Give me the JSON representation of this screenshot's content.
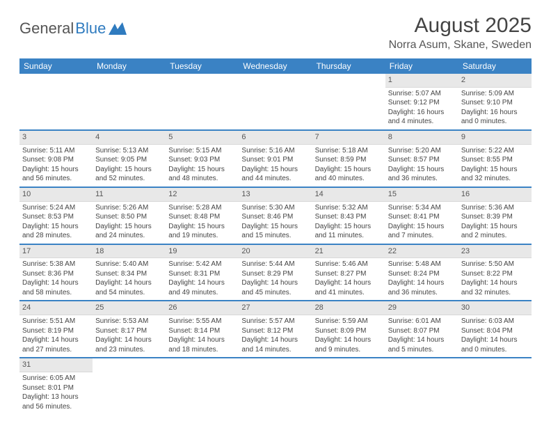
{
  "logo": {
    "text1": "General",
    "text2": "Blue"
  },
  "title": "August 2025",
  "location": "Norra Asum, Skane, Sweden",
  "colors": {
    "header_bg": "#3a82c4",
    "header_text": "#ffffff",
    "daynum_bg": "#e8e8e8",
    "border": "#3a82c4",
    "text": "#444444"
  },
  "weekdays": [
    "Sunday",
    "Monday",
    "Tuesday",
    "Wednesday",
    "Thursday",
    "Friday",
    "Saturday"
  ],
  "weeks": [
    [
      null,
      null,
      null,
      null,
      null,
      {
        "n": "1",
        "sr": "Sunrise: 5:07 AM",
        "ss": "Sunset: 9:12 PM",
        "d1": "Daylight: 16 hours",
        "d2": "and 4 minutes."
      },
      {
        "n": "2",
        "sr": "Sunrise: 5:09 AM",
        "ss": "Sunset: 9:10 PM",
        "d1": "Daylight: 16 hours",
        "d2": "and 0 minutes."
      }
    ],
    [
      {
        "n": "3",
        "sr": "Sunrise: 5:11 AM",
        "ss": "Sunset: 9:08 PM",
        "d1": "Daylight: 15 hours",
        "d2": "and 56 minutes."
      },
      {
        "n": "4",
        "sr": "Sunrise: 5:13 AM",
        "ss": "Sunset: 9:05 PM",
        "d1": "Daylight: 15 hours",
        "d2": "and 52 minutes."
      },
      {
        "n": "5",
        "sr": "Sunrise: 5:15 AM",
        "ss": "Sunset: 9:03 PM",
        "d1": "Daylight: 15 hours",
        "d2": "and 48 minutes."
      },
      {
        "n": "6",
        "sr": "Sunrise: 5:16 AM",
        "ss": "Sunset: 9:01 PM",
        "d1": "Daylight: 15 hours",
        "d2": "and 44 minutes."
      },
      {
        "n": "7",
        "sr": "Sunrise: 5:18 AM",
        "ss": "Sunset: 8:59 PM",
        "d1": "Daylight: 15 hours",
        "d2": "and 40 minutes."
      },
      {
        "n": "8",
        "sr": "Sunrise: 5:20 AM",
        "ss": "Sunset: 8:57 PM",
        "d1": "Daylight: 15 hours",
        "d2": "and 36 minutes."
      },
      {
        "n": "9",
        "sr": "Sunrise: 5:22 AM",
        "ss": "Sunset: 8:55 PM",
        "d1": "Daylight: 15 hours",
        "d2": "and 32 minutes."
      }
    ],
    [
      {
        "n": "10",
        "sr": "Sunrise: 5:24 AM",
        "ss": "Sunset: 8:53 PM",
        "d1": "Daylight: 15 hours",
        "d2": "and 28 minutes."
      },
      {
        "n": "11",
        "sr": "Sunrise: 5:26 AM",
        "ss": "Sunset: 8:50 PM",
        "d1": "Daylight: 15 hours",
        "d2": "and 24 minutes."
      },
      {
        "n": "12",
        "sr": "Sunrise: 5:28 AM",
        "ss": "Sunset: 8:48 PM",
        "d1": "Daylight: 15 hours",
        "d2": "and 19 minutes."
      },
      {
        "n": "13",
        "sr": "Sunrise: 5:30 AM",
        "ss": "Sunset: 8:46 PM",
        "d1": "Daylight: 15 hours",
        "d2": "and 15 minutes."
      },
      {
        "n": "14",
        "sr": "Sunrise: 5:32 AM",
        "ss": "Sunset: 8:43 PM",
        "d1": "Daylight: 15 hours",
        "d2": "and 11 minutes."
      },
      {
        "n": "15",
        "sr": "Sunrise: 5:34 AM",
        "ss": "Sunset: 8:41 PM",
        "d1": "Daylight: 15 hours",
        "d2": "and 7 minutes."
      },
      {
        "n": "16",
        "sr": "Sunrise: 5:36 AM",
        "ss": "Sunset: 8:39 PM",
        "d1": "Daylight: 15 hours",
        "d2": "and 2 minutes."
      }
    ],
    [
      {
        "n": "17",
        "sr": "Sunrise: 5:38 AM",
        "ss": "Sunset: 8:36 PM",
        "d1": "Daylight: 14 hours",
        "d2": "and 58 minutes."
      },
      {
        "n": "18",
        "sr": "Sunrise: 5:40 AM",
        "ss": "Sunset: 8:34 PM",
        "d1": "Daylight: 14 hours",
        "d2": "and 54 minutes."
      },
      {
        "n": "19",
        "sr": "Sunrise: 5:42 AM",
        "ss": "Sunset: 8:31 PM",
        "d1": "Daylight: 14 hours",
        "d2": "and 49 minutes."
      },
      {
        "n": "20",
        "sr": "Sunrise: 5:44 AM",
        "ss": "Sunset: 8:29 PM",
        "d1": "Daylight: 14 hours",
        "d2": "and 45 minutes."
      },
      {
        "n": "21",
        "sr": "Sunrise: 5:46 AM",
        "ss": "Sunset: 8:27 PM",
        "d1": "Daylight: 14 hours",
        "d2": "and 41 minutes."
      },
      {
        "n": "22",
        "sr": "Sunrise: 5:48 AM",
        "ss": "Sunset: 8:24 PM",
        "d1": "Daylight: 14 hours",
        "d2": "and 36 minutes."
      },
      {
        "n": "23",
        "sr": "Sunrise: 5:50 AM",
        "ss": "Sunset: 8:22 PM",
        "d1": "Daylight: 14 hours",
        "d2": "and 32 minutes."
      }
    ],
    [
      {
        "n": "24",
        "sr": "Sunrise: 5:51 AM",
        "ss": "Sunset: 8:19 PM",
        "d1": "Daylight: 14 hours",
        "d2": "and 27 minutes."
      },
      {
        "n": "25",
        "sr": "Sunrise: 5:53 AM",
        "ss": "Sunset: 8:17 PM",
        "d1": "Daylight: 14 hours",
        "d2": "and 23 minutes."
      },
      {
        "n": "26",
        "sr": "Sunrise: 5:55 AM",
        "ss": "Sunset: 8:14 PM",
        "d1": "Daylight: 14 hours",
        "d2": "and 18 minutes."
      },
      {
        "n": "27",
        "sr": "Sunrise: 5:57 AM",
        "ss": "Sunset: 8:12 PM",
        "d1": "Daylight: 14 hours",
        "d2": "and 14 minutes."
      },
      {
        "n": "28",
        "sr": "Sunrise: 5:59 AM",
        "ss": "Sunset: 8:09 PM",
        "d1": "Daylight: 14 hours",
        "d2": "and 9 minutes."
      },
      {
        "n": "29",
        "sr": "Sunrise: 6:01 AM",
        "ss": "Sunset: 8:07 PM",
        "d1": "Daylight: 14 hours",
        "d2": "and 5 minutes."
      },
      {
        "n": "30",
        "sr": "Sunrise: 6:03 AM",
        "ss": "Sunset: 8:04 PM",
        "d1": "Daylight: 14 hours",
        "d2": "and 0 minutes."
      }
    ],
    [
      {
        "n": "31",
        "sr": "Sunrise: 6:05 AM",
        "ss": "Sunset: 8:01 PM",
        "d1": "Daylight: 13 hours",
        "d2": "and 56 minutes."
      },
      null,
      null,
      null,
      null,
      null,
      null
    ]
  ]
}
